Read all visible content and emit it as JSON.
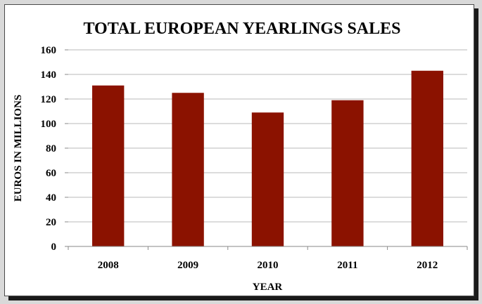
{
  "chart_data": {
    "type": "bar",
    "title": "TOTAL EUROPEAN YEARLINGS SALES",
    "xlabel": "YEAR",
    "ylabel": "EUROS IN MILLIONS",
    "categories": [
      "2008",
      "2009",
      "2010",
      "2011",
      "2012"
    ],
    "values": [
      131,
      125,
      109,
      119,
      143
    ],
    "ylim": [
      0,
      160
    ],
    "yticks": [
      0,
      20,
      40,
      60,
      80,
      100,
      120,
      140,
      160
    ],
    "grid": true,
    "legend": "none",
    "colors": {
      "bar": "#8b1200",
      "grid": "#b8b8b8",
      "axis": "#8a8a8a"
    }
  }
}
